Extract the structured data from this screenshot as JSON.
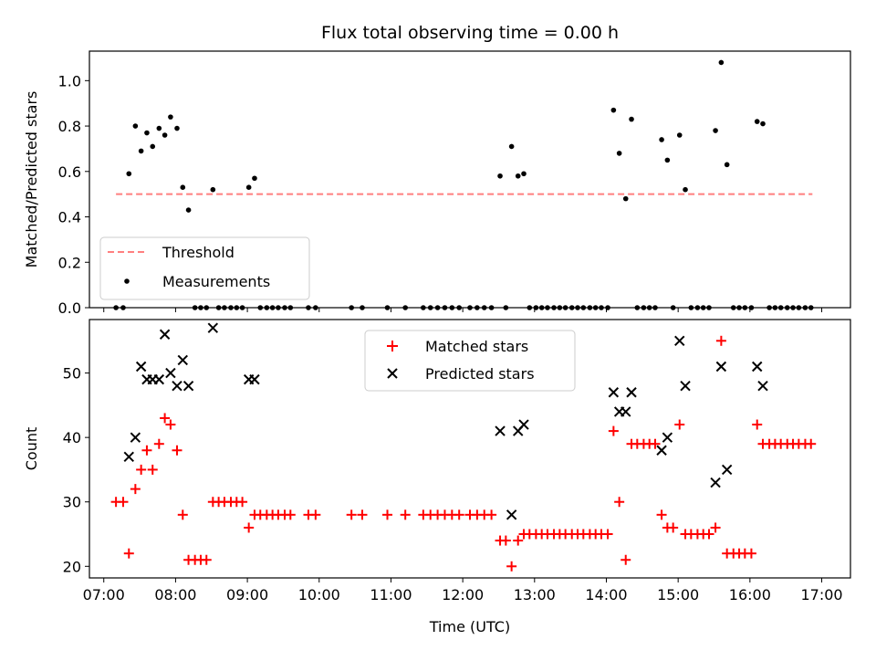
{
  "title": "Flux total observing time = 0.00 h",
  "chart_data": [
    {
      "type": "scatter",
      "ylabel": "Matched/Predicted stars",
      "xlabel": "",
      "xlim": [
        6.8,
        17.4
      ],
      "ylim": [
        0,
        1.13
      ],
      "yticks": [
        0.0,
        0.2,
        0.4,
        0.6,
        0.8,
        1.0
      ],
      "ytick_labels": [
        "0.0",
        "0.2",
        "0.4",
        "0.6",
        "0.8",
        "1.0"
      ],
      "legend_position": "lower-left",
      "threshold": {
        "name": "Threshold",
        "value": 0.5,
        "x_range": [
          7.17,
          16.87
        ],
        "color": "#ff7f7f"
      },
      "series": [
        {
          "name": "Measurements",
          "color": "#000000",
          "points": [
            [
              7.17,
              0
            ],
            [
              7.27,
              0
            ],
            [
              7.35,
              0.59
            ],
            [
              7.44,
              0.8
            ],
            [
              7.52,
              0.69
            ],
            [
              7.6,
              0.77
            ],
            [
              7.68,
              0.71
            ],
            [
              7.77,
              0.79
            ],
            [
              7.85,
              0.76
            ],
            [
              7.93,
              0.84
            ],
            [
              8.02,
              0.79
            ],
            [
              8.1,
              0.53
            ],
            [
              8.18,
              0.43
            ],
            [
              8.27,
              0
            ],
            [
              8.35,
              0
            ],
            [
              8.43,
              0
            ],
            [
              8.52,
              0.52
            ],
            [
              8.6,
              0
            ],
            [
              8.68,
              0
            ],
            [
              8.77,
              0
            ],
            [
              8.85,
              0
            ],
            [
              8.93,
              0
            ],
            [
              9.02,
              0.53
            ],
            [
              9.1,
              0.57
            ],
            [
              9.18,
              0
            ],
            [
              9.27,
              0
            ],
            [
              9.35,
              0
            ],
            [
              9.43,
              0
            ],
            [
              9.52,
              0
            ],
            [
              9.6,
              0
            ],
            [
              9.85,
              0
            ],
            [
              9.95,
              0
            ],
            [
              10.45,
              0
            ],
            [
              10.6,
              0
            ],
            [
              10.95,
              0
            ],
            [
              11.2,
              0
            ],
            [
              11.45,
              0
            ],
            [
              11.55,
              0
            ],
            [
              11.65,
              0
            ],
            [
              11.75,
              0
            ],
            [
              11.85,
              0
            ],
            [
              11.95,
              0
            ],
            [
              12.1,
              0
            ],
            [
              12.2,
              0
            ],
            [
              12.3,
              0
            ],
            [
              12.4,
              0
            ],
            [
              12.52,
              0.58
            ],
            [
              12.6,
              0
            ],
            [
              12.68,
              0.71
            ],
            [
              12.77,
              0.58
            ],
            [
              12.85,
              0.59
            ],
            [
              12.93,
              0
            ],
            [
              13.02,
              0
            ],
            [
              13.1,
              0
            ],
            [
              13.18,
              0
            ],
            [
              13.27,
              0
            ],
            [
              13.35,
              0
            ],
            [
              13.43,
              0
            ],
            [
              13.52,
              0
            ],
            [
              13.6,
              0
            ],
            [
              13.68,
              0
            ],
            [
              13.77,
              0
            ],
            [
              13.85,
              0
            ],
            [
              13.93,
              0
            ],
            [
              14.02,
              0
            ],
            [
              14.1,
              0.87
            ],
            [
              14.18,
              0.68
            ],
            [
              14.27,
              0.48
            ],
            [
              14.35,
              0.83
            ],
            [
              14.43,
              0
            ],
            [
              14.52,
              0
            ],
            [
              14.6,
              0
            ],
            [
              14.68,
              0
            ],
            [
              14.77,
              0.74
            ],
            [
              14.85,
              0.65
            ],
            [
              14.93,
              0
            ],
            [
              15.02,
              0.76
            ],
            [
              15.1,
              0.52
            ],
            [
              15.18,
              0
            ],
            [
              15.27,
              0
            ],
            [
              15.35,
              0
            ],
            [
              15.43,
              0
            ],
            [
              15.52,
              0.78
            ],
            [
              15.6,
              1.08
            ],
            [
              15.68,
              0.63
            ],
            [
              15.77,
              0
            ],
            [
              15.85,
              0
            ],
            [
              15.93,
              0
            ],
            [
              16.02,
              0
            ],
            [
              16.1,
              0.82
            ],
            [
              16.18,
              0.81
            ],
            [
              16.27,
              0
            ],
            [
              16.35,
              0
            ],
            [
              16.43,
              0
            ],
            [
              16.52,
              0
            ],
            [
              16.6,
              0
            ],
            [
              16.68,
              0
            ],
            [
              16.77,
              0
            ],
            [
              16.85,
              0
            ]
          ]
        }
      ]
    },
    {
      "type": "scatter",
      "ylabel": "Count",
      "xlabel": "Time (UTC)",
      "xlim": [
        6.8,
        17.4
      ],
      "ylim": [
        18.2,
        58.3
      ],
      "yticks": [
        20,
        30,
        40,
        50
      ],
      "ytick_labels": [
        "20",
        "30",
        "40",
        "50"
      ],
      "xticks": [
        7,
        8,
        9,
        10,
        11,
        12,
        13,
        14,
        15,
        16,
        17
      ],
      "xtick_labels": [
        "07:00",
        "08:00",
        "09:00",
        "10:00",
        "11:00",
        "12:00",
        "13:00",
        "14:00",
        "15:00",
        "16:00",
        "17:00"
      ],
      "legend_position": "upper-center",
      "series": [
        {
          "name": "Matched stars",
          "marker": "plus",
          "color": "#ff0000",
          "points": [
            [
              7.17,
              30
            ],
            [
              7.27,
              30
            ],
            [
              7.35,
              22
            ],
            [
              7.44,
              32
            ],
            [
              7.52,
              35
            ],
            [
              7.6,
              38
            ],
            [
              7.68,
              35
            ],
            [
              7.77,
              39
            ],
            [
              7.85,
              43
            ],
            [
              7.93,
              42
            ],
            [
              8.02,
              38
            ],
            [
              8.1,
              28
            ],
            [
              8.18,
              21
            ],
            [
              8.27,
              21
            ],
            [
              8.35,
              21
            ],
            [
              8.43,
              21
            ],
            [
              8.52,
              30
            ],
            [
              8.6,
              30
            ],
            [
              8.68,
              30
            ],
            [
              8.77,
              30
            ],
            [
              8.85,
              30
            ],
            [
              8.93,
              30
            ],
            [
              9.02,
              26
            ],
            [
              9.1,
              28
            ],
            [
              9.18,
              28
            ],
            [
              9.27,
              28
            ],
            [
              9.35,
              28
            ],
            [
              9.43,
              28
            ],
            [
              9.52,
              28
            ],
            [
              9.6,
              28
            ],
            [
              9.85,
              28
            ],
            [
              9.95,
              28
            ],
            [
              10.45,
              28
            ],
            [
              10.6,
              28
            ],
            [
              10.95,
              28
            ],
            [
              11.2,
              28
            ],
            [
              11.45,
              28
            ],
            [
              11.55,
              28
            ],
            [
              11.65,
              28
            ],
            [
              11.75,
              28
            ],
            [
              11.85,
              28
            ],
            [
              11.95,
              28
            ],
            [
              12.1,
              28
            ],
            [
              12.2,
              28
            ],
            [
              12.3,
              28
            ],
            [
              12.4,
              28
            ],
            [
              12.52,
              24
            ],
            [
              12.6,
              24
            ],
            [
              12.68,
              20
            ],
            [
              12.77,
              24
            ],
            [
              12.85,
              25
            ],
            [
              12.93,
              25
            ],
            [
              13.02,
              25
            ],
            [
              13.1,
              25
            ],
            [
              13.18,
              25
            ],
            [
              13.27,
              25
            ],
            [
              13.35,
              25
            ],
            [
              13.43,
              25
            ],
            [
              13.52,
              25
            ],
            [
              13.6,
              25
            ],
            [
              13.68,
              25
            ],
            [
              13.77,
              25
            ],
            [
              13.85,
              25
            ],
            [
              13.93,
              25
            ],
            [
              14.02,
              25
            ],
            [
              14.1,
              41
            ],
            [
              14.18,
              30
            ],
            [
              14.27,
              21
            ],
            [
              14.35,
              39
            ],
            [
              14.43,
              39
            ],
            [
              14.52,
              39
            ],
            [
              14.6,
              39
            ],
            [
              14.68,
              39
            ],
            [
              14.77,
              28
            ],
            [
              14.85,
              26
            ],
            [
              14.93,
              26
            ],
            [
              15.02,
              42
            ],
            [
              15.1,
              25
            ],
            [
              15.18,
              25
            ],
            [
              15.27,
              25
            ],
            [
              15.35,
              25
            ],
            [
              15.43,
              25
            ],
            [
              15.52,
              26
            ],
            [
              15.6,
              55
            ],
            [
              15.68,
              22
            ],
            [
              15.77,
              22
            ],
            [
              15.85,
              22
            ],
            [
              15.93,
              22
            ],
            [
              16.02,
              22
            ],
            [
              16.1,
              42
            ],
            [
              16.18,
              39
            ],
            [
              16.27,
              39
            ],
            [
              16.35,
              39
            ],
            [
              16.43,
              39
            ],
            [
              16.52,
              39
            ],
            [
              16.6,
              39
            ],
            [
              16.68,
              39
            ],
            [
              16.77,
              39
            ],
            [
              16.85,
              39
            ]
          ]
        },
        {
          "name": "Predicted stars",
          "marker": "x",
          "color": "#000000",
          "points": [
            [
              7.35,
              37
            ],
            [
              7.44,
              40
            ],
            [
              7.52,
              51
            ],
            [
              7.6,
              49
            ],
            [
              7.68,
              49
            ],
            [
              7.77,
              49
            ],
            [
              7.85,
              56
            ],
            [
              7.93,
              50
            ],
            [
              8.02,
              48
            ],
            [
              8.1,
              52
            ],
            [
              8.18,
              48
            ],
            [
              8.52,
              57
            ],
            [
              9.02,
              49
            ],
            [
              9.1,
              49
            ],
            [
              12.52,
              41
            ],
            [
              12.68,
              28
            ],
            [
              12.77,
              41
            ],
            [
              12.85,
              42
            ],
            [
              14.1,
              47
            ],
            [
              14.18,
              44
            ],
            [
              14.27,
              44
            ],
            [
              14.35,
              47
            ],
            [
              14.77,
              38
            ],
            [
              14.85,
              40
            ],
            [
              15.02,
              55
            ],
            [
              15.1,
              48
            ],
            [
              15.52,
              33
            ],
            [
              15.6,
              51
            ],
            [
              15.68,
              35
            ],
            [
              16.1,
              51
            ],
            [
              16.18,
              48
            ]
          ]
        }
      ]
    }
  ]
}
